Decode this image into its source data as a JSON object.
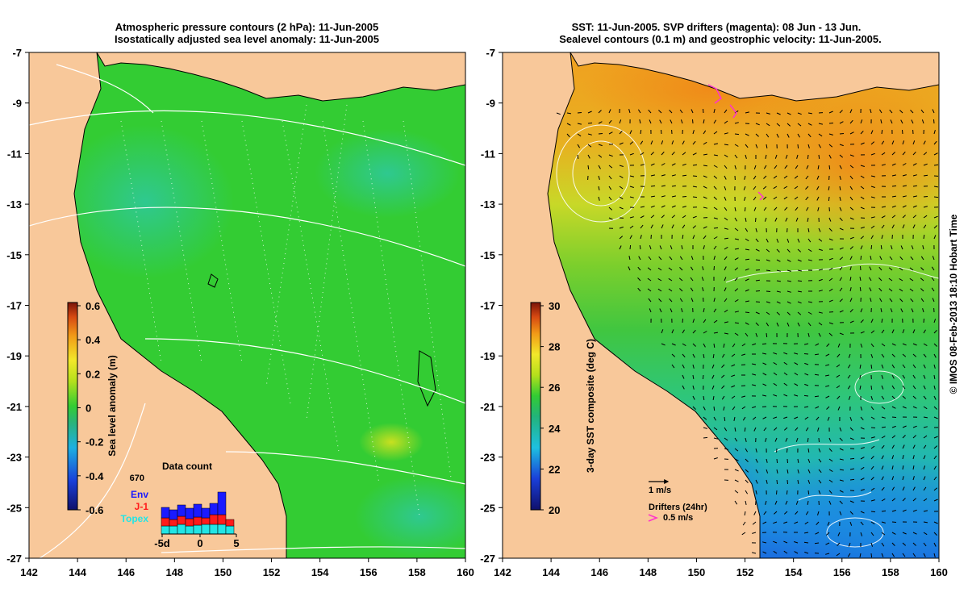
{
  "left_panel": {
    "title_line1": "Atmospheric pressure contours (2 hPa): 11-Jun-2005",
    "title_line2": "Isostatically adjusted sea level anomaly: 11-Jun-2005",
    "colorbar": {
      "label": "Sea level anomaly (m)",
      "ticks": [
        "0.6",
        "0.4",
        "0.2",
        "0",
        "-0.2",
        "-0.4",
        "-0.6"
      ]
    },
    "inset": {
      "title": "Data count",
      "max_count": "670",
      "x_ticks": [
        "-5d",
        "0",
        "5"
      ],
      "legend": [
        {
          "name": "Env",
          "color": "#1a1aff"
        },
        {
          "name": "J-1",
          "color": "#ff1a1a"
        },
        {
          "name": "Topex",
          "color": "#22e5e5"
        }
      ]
    }
  },
  "right_panel": {
    "title_line1": "SST: 11-Jun-2005. SVP drifters (magenta): 08 Jun - 13 Jun.",
    "title_line2": "Sealevel contours (0.1 m) and geostrophic velocity: 11-Jun-2005.",
    "colorbar": {
      "label": "3-day SST composite (deg C)",
      "ticks": [
        "30",
        "28",
        "26",
        "24",
        "22",
        "20"
      ]
    },
    "velocity_key": "1 m/s",
    "drifters_key_title": "Drifters (24hr)",
    "drifters_key_speed": "0.5 m/s"
  },
  "axes": {
    "x_ticks": [
      "142",
      "144",
      "146",
      "148",
      "150",
      "152",
      "154",
      "156",
      "158",
      "160"
    ],
    "y_ticks": [
      "-7",
      "-9",
      "-11",
      "-13",
      "-15",
      "-17",
      "-19",
      "-21",
      "-23",
      "-25",
      "-27"
    ]
  },
  "credit": "© IMOS 08-Feb-2013 18:10 Hobart Time",
  "colors": {
    "land": "#f8c89a",
    "slaZero": "#33cc33",
    "coast": "#000000",
    "pressure": "#ffffff",
    "drifter": "#ff33cc"
  }
}
